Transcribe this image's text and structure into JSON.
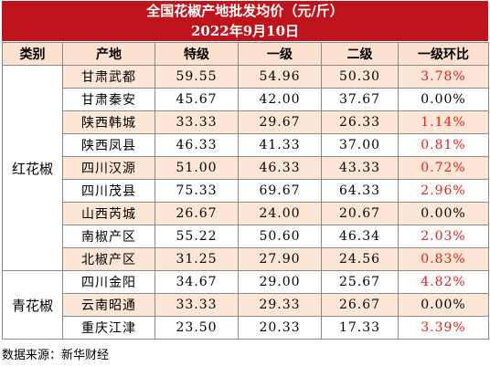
{
  "title_line1": "全国花椒产地批发均价（元/斤）",
  "title_line2": "2022年9月10日",
  "headers": [
    "类别",
    "产地",
    "特级",
    "一级",
    "二级",
    "一级环比"
  ],
  "groups": [
    {
      "category": "红花椒",
      "rows": [
        {
          "origin": "甘肃武都",
          "special": "59.55",
          "grade1": "54.96",
          "grade2": "50.30",
          "change": "3.78%"
        },
        {
          "origin": "甘肃秦安",
          "special": "45.67",
          "grade1": "42.00",
          "grade2": "37.67",
          "change": "0.00%"
        },
        {
          "origin": "陕西韩城",
          "special": "33.33",
          "grade1": "29.67",
          "grade2": "26.33",
          "change": "1.14%"
        },
        {
          "origin": "陕西凤县",
          "special": "46.33",
          "grade1": "41.33",
          "grade2": "37.00",
          "change": "0.81%"
        },
        {
          "origin": "四川汉源",
          "special": "51.00",
          "grade1": "46.33",
          "grade2": "43.33",
          "change": "0.72%"
        },
        {
          "origin": "四川茂县",
          "special": "75.33",
          "grade1": "69.67",
          "grade2": "64.33",
          "change": "2.96%"
        },
        {
          "origin": "山西芮城",
          "special": "26.67",
          "grade1": "24.00",
          "grade2": "20.67",
          "change": "0.00%"
        },
        {
          "origin": "南椒产区",
          "special": "55.22",
          "grade1": "50.60",
          "grade2": "46.34",
          "change": "2.03%"
        },
        {
          "origin": "北椒产区",
          "special": "31.25",
          "grade1": "27.90",
          "grade2": "24.56",
          "change": "0.83%"
        }
      ]
    },
    {
      "category": "青花椒",
      "rows": [
        {
          "origin": "四川金阳",
          "special": "34.67",
          "grade1": "29.00",
          "grade2": "25.67",
          "change": "4.82%"
        },
        {
          "origin": "云南昭通",
          "special": "33.33",
          "grade1": "29.33",
          "grade2": "26.67",
          "change": "0.00%"
        },
        {
          "origin": "重庆江津",
          "special": "23.50",
          "grade1": "20.33",
          "grade2": "17.33",
          "change": "3.39%"
        }
      ]
    }
  ],
  "source": "数据来源：新华财经",
  "colors": {
    "title_bg": "#c0141c",
    "header_bg": "#fce1cf",
    "row_shade": "#fde6d6",
    "change_up": "#e0201c"
  }
}
